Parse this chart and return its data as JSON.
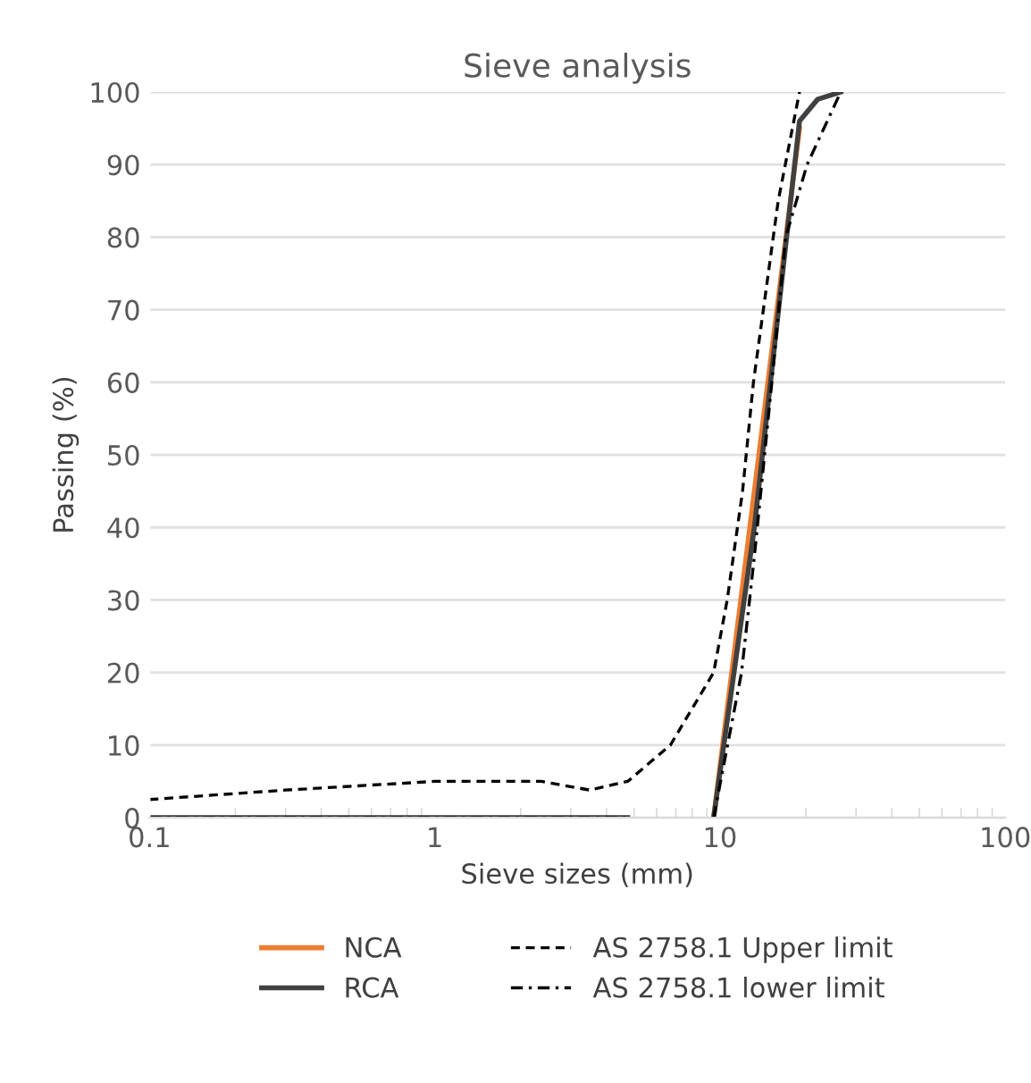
{
  "chart_data": {
    "type": "line",
    "title": "Sieve analysis",
    "xlabel": "Sieve sizes (mm)",
    "ylabel": "Passing (%)",
    "log": "x",
    "xlim": [
      0.1,
      100
    ],
    "xticks": [
      0.1,
      1,
      10,
      100
    ],
    "ylim": [
      0,
      100
    ],
    "yticks": [
      0,
      10,
      20,
      30,
      40,
      50,
      60,
      70,
      80,
      90,
      100
    ],
    "grid": "y",
    "legend": "bottom",
    "marker": "none",
    "series": [
      {
        "name": "NCA",
        "color": "#ed7d31",
        "line_style": "solid",
        "x": [
          9.5,
          13.2,
          19
        ],
        "values": [
          0,
          45,
          95
        ]
      },
      {
        "name": "RCA",
        "color": "#404040",
        "line_style": "solid",
        "x": [
          0.1,
          4.75,
          6.7,
          9.5,
          13.2,
          19,
          22,
          26.5
        ],
        "values": [
          0,
          0,
          null,
          0,
          40,
          96,
          99,
          100
        ]
      },
      {
        "name": "AS 2758.1 Upper limit",
        "color": "#000000",
        "line_style": "dashed",
        "x": [
          0.1,
          0.3,
          1,
          2.36,
          3.5,
          4.75,
          6.7,
          9.5,
          10.6,
          12,
          13.1,
          16,
          19
        ],
        "values": [
          2.5,
          3.8,
          5,
          5,
          3.8,
          5,
          10,
          20,
          30,
          45,
          60,
          85,
          100
        ]
      },
      {
        "name": "AS 2758.1 lower limit",
        "color": "#000000",
        "line_style": "dashdot",
        "x": [
          0.1,
          4.75,
          6.7,
          9.5,
          11.9,
          13.2,
          15.2,
          17,
          20.2,
          26.5
        ],
        "values": [
          0,
          0,
          null,
          0,
          20,
          36,
          60,
          80,
          90,
          100
        ]
      }
    ]
  }
}
